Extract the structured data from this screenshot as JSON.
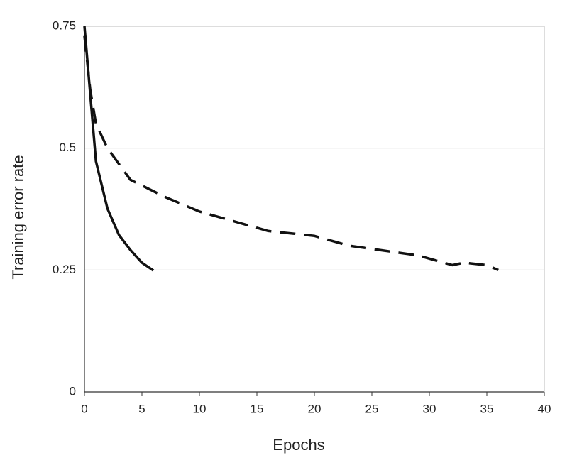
{
  "chart_data": {
    "type": "line",
    "x_label": "Epochs",
    "y_label": "Training error rate",
    "xlim": [
      0,
      40
    ],
    "xticks": [
      0,
      5,
      10,
      15,
      20,
      25,
      30,
      35,
      40
    ],
    "ylim": [
      0,
      0.75
    ],
    "yticks": [
      0,
      0.25,
      0.5,
      0.75
    ],
    "grid": true,
    "series": [
      {
        "color": "#111111",
        "dash": "solid",
        "x": [
          0,
          1,
          2,
          3,
          4,
          5,
          6
        ],
        "values": [
          0.75,
          0.473,
          0.376,
          0.322,
          0.291,
          0.265,
          0.249
        ]
      },
      {
        "color": "#111111",
        "dash": "dashed",
        "x": [
          0,
          0.5,
          1,
          2,
          4,
          7,
          10,
          13,
          16,
          20,
          23,
          26,
          29,
          32,
          33,
          35,
          36
        ],
        "values": [
          0.73,
          0.62,
          0.55,
          0.5,
          0.435,
          0.4,
          0.37,
          0.35,
          0.33,
          0.32,
          0.3,
          0.29,
          0.28,
          0.26,
          0.265,
          0.26,
          0.25
        ]
      }
    ]
  }
}
